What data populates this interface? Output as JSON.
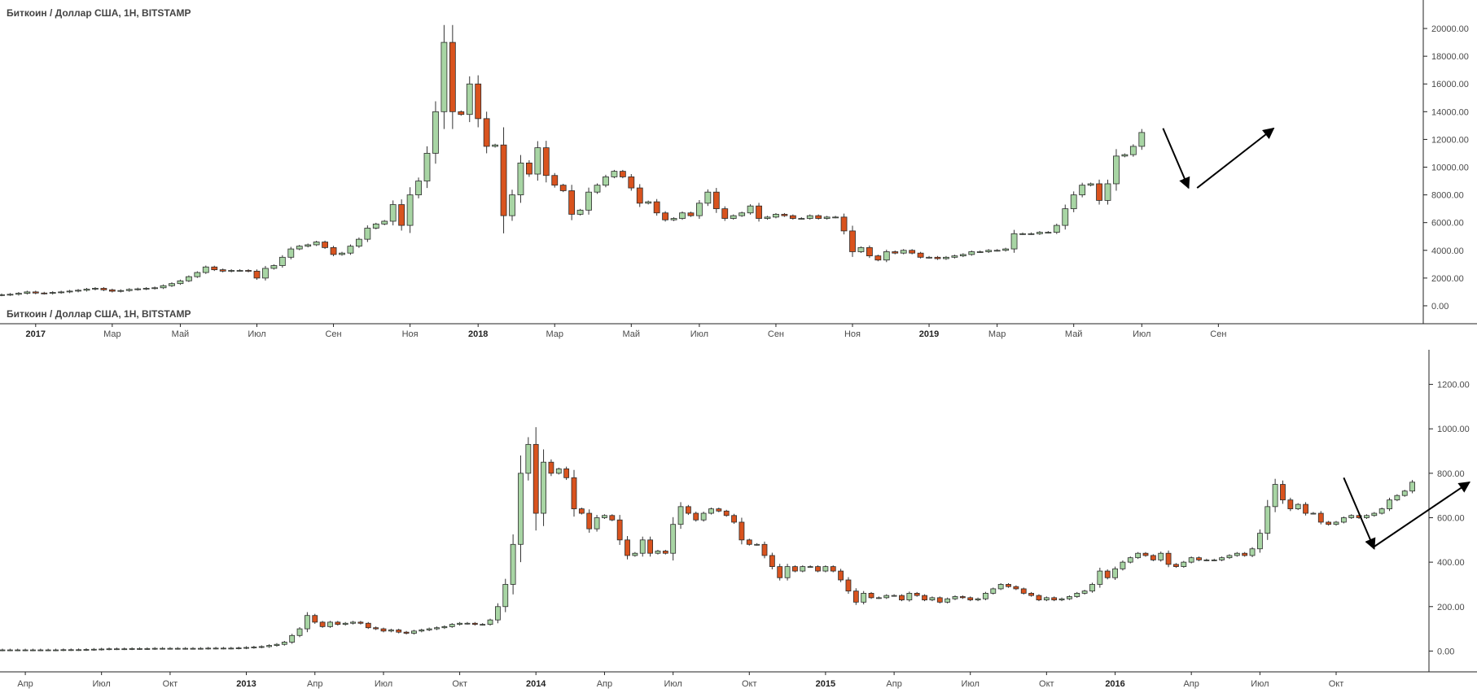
{
  "colors": {
    "up_fill": "#a8d5a4",
    "up_border": "#2b2b2b",
    "down_fill": "#d9531e",
    "down_border": "#2b2b2b",
    "axis": "#222222",
    "text": "#4a4a4a",
    "arrow": "#000000"
  },
  "chart_data": [
    {
      "type": "candlestick",
      "title": "Биткоин / Доллар США, 1Н, BITSTAMP",
      "ylim": [
        -1000,
        21000
      ],
      "yticks": [
        0,
        2000,
        4000,
        6000,
        8000,
        10000,
        12000,
        14000,
        16000,
        18000,
        20000
      ],
      "ytick_labels": [
        "0.00",
        "2000.00",
        "4000.00",
        "6000.00",
        "8000.00",
        "10000.00",
        "12000.00",
        "14000.00",
        "16000.00",
        "18000.00",
        "20000.00"
      ],
      "x_index_range": [
        0,
        143
      ],
      "xtick_labels": [
        {
          "label": "2017",
          "index": 4,
          "bold": true
        },
        {
          "label": "Мар",
          "index": 13,
          "bold": false
        },
        {
          "label": "Май",
          "index": 21,
          "bold": false
        },
        {
          "label": "Июл",
          "index": 30,
          "bold": false
        },
        {
          "label": "Сен",
          "index": 39,
          "bold": false
        },
        {
          "label": "Ноя",
          "index": 48,
          "bold": false
        },
        {
          "label": "2018",
          "index": 56,
          "bold": true
        },
        {
          "label": "Мар",
          "index": 65,
          "bold": false
        },
        {
          "label": "Май",
          "index": 74,
          "bold": false
        },
        {
          "label": "Июл",
          "index": 82,
          "bold": false
        },
        {
          "label": "Сен",
          "index": 91,
          "bold": false
        },
        {
          "label": "Ноя",
          "index": 100,
          "bold": false
        },
        {
          "label": "2019",
          "index": 109,
          "bold": true
        },
        {
          "label": "Мар",
          "index": 117,
          "bold": false
        },
        {
          "label": "Май",
          "index": 126,
          "bold": false
        },
        {
          "label": "Июл",
          "index": 134,
          "bold": false
        },
        {
          "label": "Сен",
          "index": 143,
          "bold": false
        }
      ],
      "close": [
        800,
        830,
        900,
        1000,
        920,
        900,
        960,
        1000,
        1060,
        1120,
        1200,
        1260,
        1150,
        1050,
        1100,
        1180,
        1220,
        1260,
        1300,
        1450,
        1600,
        1800,
        2100,
        2400,
        2800,
        2600,
        2500,
        2550,
        2550,
        2500,
        2000,
        2700,
        2900,
        3500,
        4100,
        4300,
        4400,
        4600,
        4200,
        3700,
        3800,
        4300,
        4800,
        5600,
        5900,
        6100,
        7300,
        5800,
        8000,
        9000,
        11000,
        14000,
        19000,
        14000,
        13800,
        16000,
        13500,
        11500,
        11600,
        6500,
        8000,
        10300,
        9500,
        11400,
        9400,
        8700,
        8300,
        6600,
        6900,
        8200,
        8700,
        9300,
        9700,
        9300,
        8500,
        7400,
        7500,
        6700,
        6200,
        6300,
        6700,
        6500,
        7400,
        8200,
        7000,
        6300,
        6500,
        6700,
        7200,
        6300,
        6400,
        6600,
        6500,
        6300,
        6300,
        6500,
        6300,
        6400,
        6400,
        5400,
        3900,
        4200,
        3600,
        3300,
        3900,
        3800,
        4000,
        3800,
        3500,
        3500,
        3400,
        3500,
        3600,
        3700,
        3900,
        3900,
        4000,
        4000,
        4100,
        5200,
        5200,
        5200,
        5300,
        5300,
        5800,
        7000,
        8000,
        8700,
        8800,
        7600,
        8800,
        10800,
        10900,
        11500,
        12500
      ],
      "ohlc_note": "open of each candle equals previous close"
    },
    {
      "type": "candlestick",
      "title": "Биткоин / Доллар США, 1Н, BITSTAMP",
      "ylim": [
        -90,
        1290
      ],
      "yticks": [
        0,
        200,
        400,
        600,
        800,
        1000,
        1200
      ],
      "ytick_labels": [
        "0.00",
        "200.00",
        "400.00",
        "600.00",
        "800.00",
        "1000.00",
        "1200.00"
      ],
      "x_index_range": [
        0,
        187
      ],
      "xtick_labels": [
        {
          "label": "Апр",
          "index": 3,
          "bold": false
        },
        {
          "label": "Июл",
          "index": 13,
          "bold": false
        },
        {
          "label": "Окт",
          "index": 22,
          "bold": false
        },
        {
          "label": "2013",
          "index": 32,
          "bold": true
        },
        {
          "label": "Апр",
          "index": 41,
          "bold": false
        },
        {
          "label": "Июл",
          "index": 50,
          "bold": false
        },
        {
          "label": "Окт",
          "index": 60,
          "bold": false
        },
        {
          "label": "2014",
          "index": 70,
          "bold": true
        },
        {
          "label": "Апр",
          "index": 79,
          "bold": false
        },
        {
          "label": "Июл",
          "index": 88,
          "bold": false
        },
        {
          "label": "Окт",
          "index": 98,
          "bold": false
        },
        {
          "label": "2015",
          "index": 108,
          "bold": true
        },
        {
          "label": "Апр",
          "index": 117,
          "bold": false
        },
        {
          "label": "Июл",
          "index": 127,
          "bold": false
        },
        {
          "label": "Окт",
          "index": 137,
          "bold": false
        },
        {
          "label": "2016",
          "index": 146,
          "bold": true
        },
        {
          "label": "Апр",
          "index": 156,
          "bold": false
        },
        {
          "label": "Июл",
          "index": 165,
          "bold": false
        },
        {
          "label": "Окт",
          "index": 175,
          "bold": false
        }
      ],
      "close": [
        5,
        5,
        5,
        5,
        5,
        5,
        5,
        5,
        6,
        6,
        6,
        7,
        8,
        9,
        10,
        10,
        10,
        11,
        11,
        11,
        12,
        12,
        12,
        12,
        12,
        12,
        12,
        13,
        13,
        13,
        13,
        14,
        16,
        18,
        20,
        25,
        30,
        40,
        70,
        100,
        160,
        130,
        110,
        130,
        120,
        125,
        130,
        125,
        105,
        100,
        90,
        95,
        85,
        80,
        90,
        95,
        100,
        105,
        110,
        120,
        125,
        125,
        120,
        120,
        140,
        200,
        300,
        480,
        800,
        930,
        620,
        850,
        800,
        820,
        780,
        640,
        620,
        550,
        600,
        610,
        590,
        500,
        430,
        440,
        500,
        440,
        450,
        440,
        570,
        650,
        620,
        590,
        620,
        640,
        630,
        610,
        580,
        500,
        480,
        480,
        430,
        380,
        330,
        380,
        360,
        380,
        380,
        360,
        380,
        360,
        320,
        270,
        220,
        260,
        240,
        240,
        250,
        250,
        230,
        260,
        250,
        230,
        240,
        220,
        235,
        245,
        240,
        230,
        235,
        260,
        280,
        300,
        290,
        280,
        260,
        250,
        230,
        240,
        230,
        235,
        245,
        260,
        270,
        300,
        360,
        330,
        370,
        400,
        420,
        440,
        430,
        410,
        440,
        390,
        380,
        400,
        420,
        410,
        410,
        410,
        420,
        430,
        440,
        430,
        460,
        530,
        650,
        750,
        680,
        640,
        660,
        620,
        620,
        580,
        570,
        580,
        600,
        610,
        600,
        610,
        620,
        640,
        680,
        700,
        720,
        760
      ]
    }
  ],
  "annotations": {
    "arrows": [
      {
        "chart": 0,
        "from": [
          136.5,
          12800
        ],
        "to": [
          139.5,
          8500
        ]
      },
      {
        "chart": 0,
        "from": [
          140.5,
          8500
        ],
        "to": [
          149.5,
          12800
        ]
      },
      {
        "chart": 1,
        "from": [
          176,
          780
        ],
        "to": [
          180,
          460
        ]
      },
      {
        "chart": 1,
        "from": [
          180,
          470
        ],
        "to": [
          192.5,
          760
        ]
      }
    ]
  }
}
